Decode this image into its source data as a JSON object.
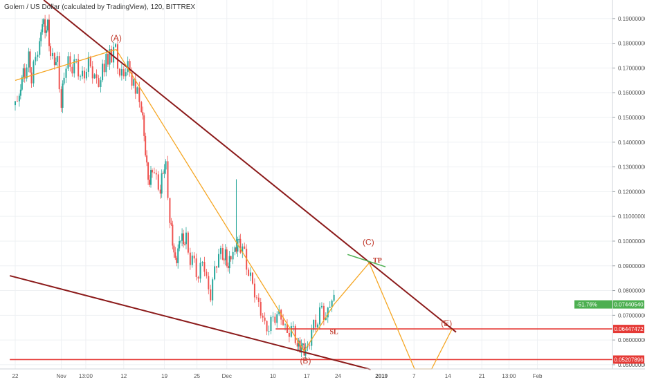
{
  "chart_data": {
    "type": "candlestick",
    "title": "Golem / US Dollar (calculated by TradingView), 120, BITTREX",
    "y_range": [
      0.0483,
      0.1975
    ],
    "y_ticks": [
      "0.05000000",
      "0.06000000",
      "0.07000000",
      "0.08000000",
      "0.09000000",
      "0.10000000",
      "0.11000000",
      "0.12000000",
      "0.13000000",
      "0.14000000",
      "0.15000000",
      "0.16000000",
      "0.17000000",
      "0.18000000",
      "0.19000000"
    ],
    "x_ticks": [
      {
        "label": "22",
        "t": 0.0
      },
      {
        "label": "Nov",
        "t": 1.7
      },
      {
        "label": "13:00",
        "t": 2.6
      },
      {
        "label": "12",
        "t": 4.0
      },
      {
        "label": "19",
        "t": 5.5
      },
      {
        "label": "25",
        "t": 6.7
      },
      {
        "label": "Dec",
        "t": 7.8
      },
      {
        "label": "10",
        "t": 9.5
      },
      {
        "label": "17",
        "t": 10.75
      },
      {
        "label": "24",
        "t": 11.9
      },
      {
        "label": "2019",
        "t": 13.5
      },
      {
        "label": "7",
        "t": 14.7
      },
      {
        "label": "14",
        "t": 15.95
      },
      {
        "label": "21",
        "t": 17.2
      },
      {
        "label": "13:00",
        "t": 18.2
      },
      {
        "label": "Feb",
        "t": 19.25
      }
    ],
    "price_close": [
      {
        "t": 0.0,
        "p": 0.155
      },
      {
        "t": 0.15,
        "p": 0.157
      },
      {
        "t": 0.25,
        "p": 0.17
      },
      {
        "t": 0.35,
        "p": 0.168
      },
      {
        "t": 0.5,
        "p": 0.175
      },
      {
        "t": 0.6,
        "p": 0.165
      },
      {
        "t": 0.75,
        "p": 0.172
      },
      {
        "t": 0.9,
        "p": 0.181
      },
      {
        "t": 1.0,
        "p": 0.192
      },
      {
        "t": 1.1,
        "p": 0.185
      },
      {
        "t": 1.2,
        "p": 0.187
      },
      {
        "t": 1.3,
        "p": 0.175
      },
      {
        "t": 1.45,
        "p": 0.17
      },
      {
        "t": 1.55,
        "p": 0.172
      },
      {
        "t": 1.7,
        "p": 0.158
      },
      {
        "t": 1.8,
        "p": 0.168
      },
      {
        "t": 1.95,
        "p": 0.172
      },
      {
        "t": 2.1,
        "p": 0.169
      },
      {
        "t": 2.25,
        "p": 0.171
      },
      {
        "t": 2.4,
        "p": 0.17
      },
      {
        "t": 2.55,
        "p": 0.166
      },
      {
        "t": 2.7,
        "p": 0.172
      },
      {
        "t": 2.85,
        "p": 0.167
      },
      {
        "t": 3.0,
        "p": 0.164
      },
      {
        "t": 3.15,
        "p": 0.169
      },
      {
        "t": 3.35,
        "p": 0.172
      },
      {
        "t": 3.55,
        "p": 0.174
      },
      {
        "t": 3.7,
        "p": 0.178
      },
      {
        "t": 3.85,
        "p": 0.17
      },
      {
        "t": 4.0,
        "p": 0.166
      },
      {
        "t": 4.15,
        "p": 0.17
      },
      {
        "t": 4.3,
        "p": 0.165
      },
      {
        "t": 4.5,
        "p": 0.162
      },
      {
        "t": 4.65,
        "p": 0.155
      },
      {
        "t": 4.75,
        "p": 0.14
      },
      {
        "t": 4.85,
        "p": 0.128
      },
      {
        "t": 4.95,
        "p": 0.124
      },
      {
        "t": 5.05,
        "p": 0.13
      },
      {
        "t": 5.2,
        "p": 0.126
      },
      {
        "t": 5.35,
        "p": 0.122
      },
      {
        "t": 5.45,
        "p": 0.126
      },
      {
        "t": 5.55,
        "p": 0.128
      },
      {
        "t": 5.7,
        "p": 0.11
      },
      {
        "t": 5.8,
        "p": 0.1
      },
      {
        "t": 5.9,
        "p": 0.092
      },
      {
        "t": 6.0,
        "p": 0.098
      },
      {
        "t": 6.1,
        "p": 0.102
      },
      {
        "t": 6.2,
        "p": 0.096
      },
      {
        "t": 6.3,
        "p": 0.1
      },
      {
        "t": 6.45,
        "p": 0.094
      },
      {
        "t": 6.6,
        "p": 0.092
      },
      {
        "t": 6.75,
        "p": 0.086
      },
      {
        "t": 6.9,
        "p": 0.09
      },
      {
        "t": 7.05,
        "p": 0.084
      },
      {
        "t": 7.2,
        "p": 0.08
      },
      {
        "t": 7.35,
        "p": 0.088
      },
      {
        "t": 7.5,
        "p": 0.096
      },
      {
        "t": 7.65,
        "p": 0.09
      },
      {
        "t": 7.75,
        "p": 0.094
      },
      {
        "t": 7.85,
        "p": 0.092
      },
      {
        "t": 7.95,
        "p": 0.096
      },
      {
        "t": 8.1,
        "p": 0.095
      },
      {
        "t": 8.2,
        "p": 0.101
      },
      {
        "t": 8.3,
        "p": 0.096
      },
      {
        "t": 8.45,
        "p": 0.094
      },
      {
        "t": 8.6,
        "p": 0.09
      },
      {
        "t": 8.75,
        "p": 0.082
      },
      {
        "t": 8.9,
        "p": 0.076
      },
      {
        "t": 9.05,
        "p": 0.07
      },
      {
        "t": 9.2,
        "p": 0.066
      },
      {
        "t": 9.35,
        "p": 0.068
      },
      {
        "t": 9.5,
        "p": 0.067
      },
      {
        "t": 9.65,
        "p": 0.07
      },
      {
        "t": 9.8,
        "p": 0.068
      },
      {
        "t": 9.95,
        "p": 0.066
      },
      {
        "t": 10.1,
        "p": 0.065
      },
      {
        "t": 10.25,
        "p": 0.062
      },
      {
        "t": 10.4,
        "p": 0.058
      },
      {
        "t": 10.5,
        "p": 0.056
      },
      {
        "t": 10.6,
        "p": 0.057
      },
      {
        "t": 10.7,
        "p": 0.058
      },
      {
        "t": 10.85,
        "p": 0.06
      },
      {
        "t": 11.0,
        "p": 0.064
      },
      {
        "t": 11.15,
        "p": 0.068
      },
      {
        "t": 11.3,
        "p": 0.073
      },
      {
        "t": 11.45,
        "p": 0.071
      },
      {
        "t": 11.6,
        "p": 0.074
      },
      {
        "t": 11.75,
        "p": 0.0744
      }
    ],
    "annotations": {
      "wave_labels": [
        {
          "text": "(A)",
          "t": 3.72,
          "p": 0.181
        },
        {
          "text": "(B)",
          "t": 10.7,
          "p": 0.0505
        },
        {
          "text": "(C)",
          "t": 13.02,
          "p": 0.0985
        },
        {
          "text": "(E)",
          "t": 15.9,
          "p": 0.0656
        }
      ],
      "marks": [
        {
          "text": "TP",
          "t": 13.35,
          "p": 0.0913
        },
        {
          "text": "SL",
          "t": 11.75,
          "p": 0.0624
        }
      ],
      "trendlines": [
        {
          "t1": 1.05,
          "p1": 0.1975,
          "t2": 16.25,
          "p2": 0.0632
        },
        {
          "t1": -0.2,
          "p1": 0.086,
          "t2": 13.1,
          "p2": 0.0481
        }
      ],
      "wave_path": [
        {
          "t": 0.0,
          "p": 0.165
        },
        {
          "t": 3.72,
          "p": 0.1775
        },
        {
          "t": 10.65,
          "p": 0.0555
        },
        {
          "t": 11.75,
          "p": 0.0744
        },
        {
          "t": 13.05,
          "p": 0.0912
        },
        {
          "t": 14.72,
          "p": 0.0483
        },
        {
          "t": 15.35,
          "p": 0.0483
        },
        {
          "t": 16.1,
          "p": 0.0644
        }
      ],
      "support_lines": [
        {
          "p": 0.06447472,
          "t_start": 9.6
        },
        {
          "p": 0.05207896,
          "t_start": -0.2
        }
      ],
      "tp_zone": [
        {
          "t": 12.25,
          "p": 0.0946
        },
        {
          "t": 13.65,
          "p": 0.0896
        }
      ]
    },
    "price_tags": [
      {
        "percent": "-51.76%",
        "price": "0.07440540",
        "p": 0.0744,
        "color": "#4caf50"
      },
      {
        "price": "0.06447472",
        "p": 0.06447472,
        "color": "#e53935"
      },
      {
        "price": "0.05207896",
        "p": 0.05207896,
        "color": "#e53935"
      }
    ]
  }
}
